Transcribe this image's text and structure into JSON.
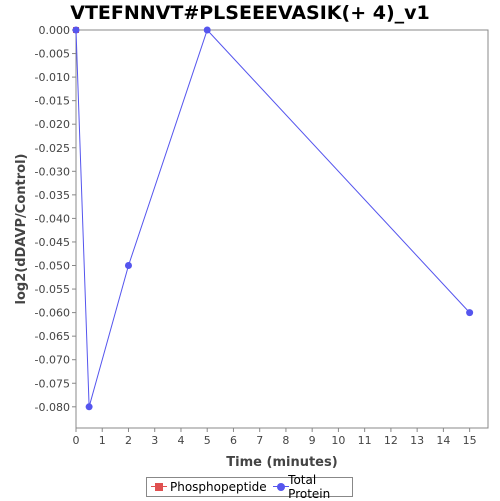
{
  "chart_data": {
    "type": "line",
    "title": "VTEFNNVT#PLSEEEVASIK(+ 4)_v1",
    "xlabel": "Time (minutes)",
    "ylabel": "log2(dDAVP/Control)",
    "xlim": [
      0,
      15.7
    ],
    "ylim": [
      -0.0845,
      0.0
    ],
    "x_ticks": [
      "0",
      "1",
      "2",
      "3",
      "4",
      "5",
      "6",
      "7",
      "8",
      "9",
      "10",
      "11",
      "12",
      "13",
      "14",
      "15"
    ],
    "y_ticks": [
      "0.000",
      "-0.005",
      "-0.010",
      "-0.015",
      "-0.020",
      "-0.025",
      "-0.030",
      "-0.035",
      "-0.040",
      "-0.045",
      "-0.050",
      "-0.055",
      "-0.060",
      "-0.065",
      "-0.070",
      "-0.075",
      "-0.080"
    ],
    "grid": false,
    "legend_position": "bottom",
    "series": [
      {
        "name": "Phosphopeptide",
        "color": "#e05050",
        "marker": "square",
        "x": [
          0
        ],
        "y": [
          0.0
        ]
      },
      {
        "name": "Total Protein",
        "color": "#5555ee",
        "marker": "circle",
        "x": [
          0,
          0.5,
          2,
          5,
          15
        ],
        "y": [
          0.0,
          -0.08,
          -0.05,
          0.0,
          -0.06
        ]
      }
    ]
  }
}
